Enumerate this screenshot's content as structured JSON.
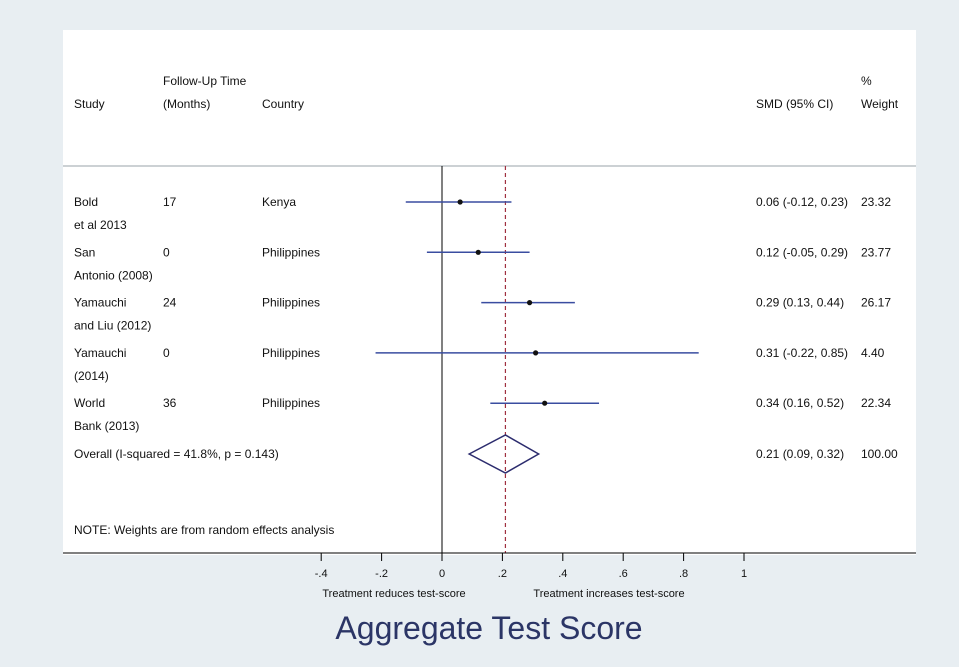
{
  "chart_data": {
    "type": "forest",
    "title": "Aggregate Test Score",
    "columns": {
      "study": "Study",
      "followup_line1": "Follow-Up Time",
      "followup_line2": "(Months)",
      "country": "Country",
      "smd": "SMD (95% CI)",
      "weight_line1": "%",
      "weight_line2": "Weight"
    },
    "studies": [
      {
        "study_line1": "Bold",
        "study_line2": "et al 2013",
        "followup": "17",
        "country": "Kenya",
        "smd": 0.06,
        "lo": -0.12,
        "hi": 0.23,
        "ci_text": "0.06 (-0.12, 0.23)",
        "weight": "23.32"
      },
      {
        "study_line1": "San",
        "study_line2": "Antonio (2008)",
        "followup": "0",
        "country": "Philippines",
        "smd": 0.12,
        "lo": -0.05,
        "hi": 0.29,
        "ci_text": "0.12 (-0.05, 0.29)",
        "weight": "23.77"
      },
      {
        "study_line1": "Yamauchi",
        "study_line2": "and Liu (2012)",
        "followup": "24",
        "country": "Philippines",
        "smd": 0.29,
        "lo": 0.13,
        "hi": 0.44,
        "ci_text": "0.29 (0.13, 0.44)",
        "weight": "26.17"
      },
      {
        "study_line1": "Yamauchi",
        "study_line2": "(2014)",
        "followup": "0",
        "country": "Philippines",
        "smd": 0.31,
        "lo": -0.22,
        "hi": 0.85,
        "ci_text": "0.31 (-0.22, 0.85)",
        "weight": "4.40"
      },
      {
        "study_line1": "World",
        "study_line2": "Bank (2013)",
        "followup": "36",
        "country": "Philippines",
        "smd": 0.34,
        "lo": 0.16,
        "hi": 0.52,
        "ci_text": "0.34 (0.16, 0.52)",
        "weight": "22.34"
      }
    ],
    "overall": {
      "label": "Overall  (I-squared = 41.8%, p = 0.143)",
      "smd": 0.21,
      "lo": 0.09,
      "hi": 0.32,
      "ci_text": "0.21 (0.09, 0.32)",
      "weight": "100.00"
    },
    "note": "NOTE: Weights are from random effects analysis",
    "x_ticks": [
      -0.4,
      -0.2,
      0,
      0.2,
      0.4,
      0.6,
      0.8,
      1
    ],
    "x_tick_labels": [
      "-.4",
      "-.2",
      "0",
      ".2",
      ".4",
      ".6",
      ".8",
      "1"
    ],
    "xlim": [
      -0.4,
      1
    ],
    "x_caption_left": "Treatment reduces test-score",
    "x_caption_right": "Treatment increases test-score",
    "colors": {
      "ci_line": "#3a4da0",
      "diamond": "#2c2c6e",
      "null_line": "#a03040",
      "title": "#2b3566",
      "background": "#e8eef2",
      "panel": "#ffffff"
    }
  }
}
